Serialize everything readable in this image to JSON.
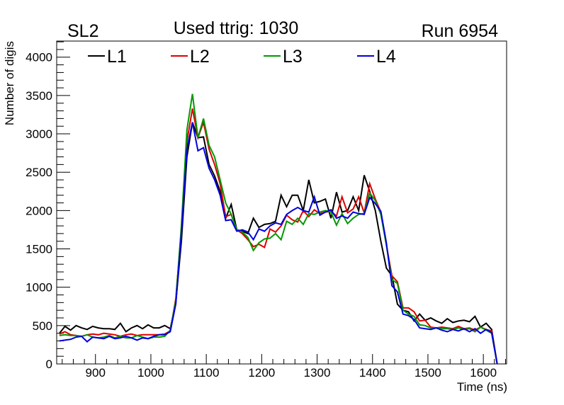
{
  "chart_data": {
    "type": "line",
    "title_left": "SL2",
    "title_center": "Used ttrig: 1030",
    "title_right": "Run 6954",
    "xlabel": "Time (ns)",
    "ylabel": "Number of digis",
    "xlim": [
      830,
      1642
    ],
    "ylim": [
      0,
      4210
    ],
    "x_ticks": [
      900,
      1000,
      1100,
      1200,
      1300,
      1400,
      1500,
      1600
    ],
    "x_tick_labels": [
      "900",
      "1000",
      "1100",
      "1200",
      "1300",
      "1400",
      "1500",
      "1600"
    ],
    "y_ticks": [
      0,
      500,
      1000,
      1500,
      2000,
      2500,
      3000,
      3500,
      4000
    ],
    "y_tick_labels": [
      "0",
      "500",
      "1000",
      "1500",
      "2000",
      "2500",
      "3000",
      "3500",
      "4000"
    ],
    "x_start": 835,
    "x_step": 10,
    "legend_position": "top",
    "series": [
      {
        "name": "L1",
        "color": "#000000",
        "values": [
          400,
          490,
          440,
          500,
          470,
          450,
          490,
          470,
          460,
          460,
          450,
          530,
          420,
          470,
          500,
          460,
          510,
          470,
          470,
          500,
          460,
          800,
          1600,
          2700,
          3150,
          2950,
          2960,
          2600,
          2450,
          2250,
          1900,
          2080,
          1750,
          1730,
          1700,
          1900,
          1780,
          1820,
          1830,
          1860,
          2200,
          2050,
          2200,
          2200,
          2000,
          2400,
          2100,
          2120,
          2150,
          1900,
          2240,
          1980,
          2000,
          2180,
          2000,
          2460,
          2250,
          2000,
          1600,
          1250,
          1150,
          780,
          700,
          680,
          560,
          650,
          570,
          600,
          560,
          530,
          590,
          540,
          560,
          570,
          550,
          620,
          480,
          530,
          450,
          0
        ]
      },
      {
        "name": "L2",
        "color": "#dd0000",
        "values": [
          390,
          420,
          380,
          370,
          360,
          380,
          390,
          380,
          400,
          390,
          380,
          360,
          380,
          390,
          370,
          380,
          380,
          380,
          380,
          390,
          430,
          850,
          1750,
          2900,
          3330,
          2950,
          3150,
          2800,
          2600,
          2350,
          1920,
          1950,
          1750,
          1700,
          1620,
          1530,
          1560,
          1520,
          1760,
          1720,
          1800,
          1940,
          1880,
          1850,
          2000,
          1920,
          2010,
          1960,
          1980,
          1990,
          1930,
          2180,
          1970,
          2020,
          2180,
          1970,
          2350,
          2150,
          1980,
          1550,
          1150,
          1070,
          730,
          730,
          680,
          560,
          570,
          480,
          470,
          480,
          470,
          460,
          490,
          460,
          470,
          440,
          480,
          450,
          430,
          0
        ]
      },
      {
        "name": "L3",
        "color": "#009900",
        "values": [
          370,
          380,
          370,
          370,
          360,
          380,
          350,
          340,
          350,
          370,
          340,
          360,
          340,
          340,
          370,
          350,
          330,
          350,
          350,
          360,
          440,
          820,
          1800,
          3050,
          3520,
          2950,
          3200,
          2850,
          2700,
          2400,
          2100,
          1950,
          1750,
          1720,
          1650,
          1480,
          1580,
          1630,
          1640,
          1700,
          1620,
          1860,
          1820,
          1900,
          1820,
          1960,
          1950,
          1980,
          2000,
          1980,
          1810,
          1960,
          1830,
          1900,
          1950,
          1960,
          2230,
          2130,
          1950,
          1550,
          1100,
          1050,
          700,
          650,
          620,
          510,
          500,
          470,
          470,
          460,
          460,
          450,
          470,
          450,
          460,
          420,
          480,
          440,
          400,
          0
        ]
      },
      {
        "name": "L4",
        "color": "#0000dd",
        "values": [
          300,
          310,
          320,
          350,
          360,
          290,
          350,
          340,
          330,
          360,
          330,
          340,
          360,
          340,
          310,
          340,
          330,
          360,
          380,
          380,
          420,
          780,
          1700,
          2800,
          3150,
          2780,
          2820,
          2550,
          2400,
          2200,
          1870,
          1880,
          1730,
          1750,
          1720,
          1620,
          1760,
          1730,
          1800,
          1840,
          1820,
          1950,
          2000,
          2040,
          2000,
          1980,
          2180,
          1940,
          1980,
          2010,
          1900,
          1930,
          1900,
          1980,
          1960,
          1950,
          2170,
          2090,
          1990,
          1580,
          1020,
          940,
          650,
          630,
          580,
          470,
          460,
          450,
          470,
          440,
          420,
          450,
          430,
          460,
          420,
          460,
          400,
          450,
          410,
          0
        ]
      }
    ]
  }
}
